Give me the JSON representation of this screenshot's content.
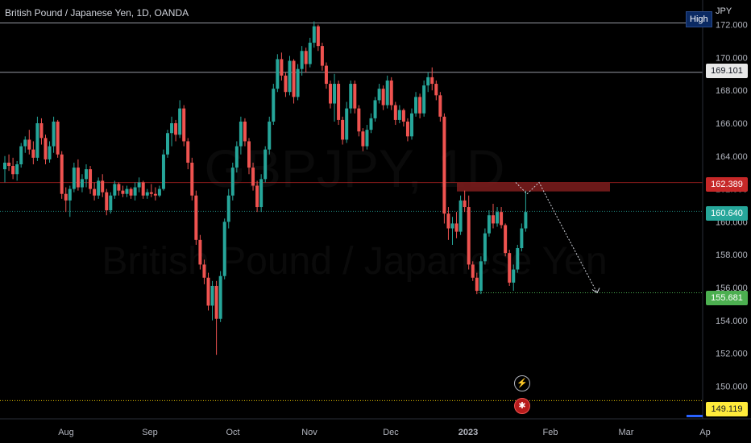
{
  "header": {
    "title": "British Pound / Japanese Yen, 1D, OANDA",
    "currency": "JPY",
    "high_label": "High"
  },
  "watermark": {
    "symbol": "GBPJPY, 1D",
    "name": "British Pound / Japanese Yen"
  },
  "price_tags": {
    "line_169": "169.101",
    "resistance": "162.389",
    "last": "160.640",
    "target": "155.681",
    "low": "149.119"
  },
  "icons": [
    "lightning-icon",
    "flag-uk-icon"
  ],
  "colors": {
    "up": "#26a69a",
    "down": "#ef5350",
    "zone": "#7f1d1d",
    "last_tag": "#26a69a",
    "target_tag": "#4caf50",
    "low_tag": "#ffeb3b",
    "resistance_tag": "#c62828"
  },
  "chart_data": {
    "type": "candlestick",
    "title": "British Pound / Japanese Yen, 1D, OANDA",
    "y_unit": "JPY",
    "ylim": [
      148.5,
      173.5
    ],
    "y_ticks": [
      "150.000",
      "152.000",
      "154.000",
      "156.000",
      "158.000",
      "160.000",
      "162.000",
      "164.000",
      "166.000",
      "168.000",
      "170.000",
      "172.000"
    ],
    "x_ticks": [
      "Aug",
      "Sep",
      "Oct",
      "Nov",
      "Dec",
      "2023",
      "Feb",
      "Mar",
      "Ap"
    ],
    "levels": {
      "high_line": 172.1,
      "line_169": 169.101,
      "resistance_zone": [
        161.85,
        162.389
      ],
      "last_price": 160.64,
      "target": 155.681,
      "low": 149.119
    },
    "projection": [
      162.4,
      161.7,
      162.4,
      160.6,
      155.681
    ],
    "candles": [
      [
        163.2,
        164.0,
        162.4,
        163.6
      ],
      [
        163.6,
        164.1,
        163.1,
        163.4
      ],
      [
        163.4,
        163.9,
        162.6,
        162.9
      ],
      [
        162.9,
        163.7,
        162.5,
        163.5
      ],
      [
        163.5,
        164.8,
        163.3,
        164.6
      ],
      [
        164.6,
        165.2,
        164.2,
        165.0
      ],
      [
        165.0,
        165.6,
        164.1,
        164.4
      ],
      [
        164.4,
        164.9,
        163.5,
        163.9
      ],
      [
        163.9,
        166.4,
        163.7,
        166.0
      ],
      [
        166.0,
        166.3,
        164.7,
        165.1
      ],
      [
        165.1,
        165.3,
        163.5,
        163.8
      ],
      [
        163.8,
        164.9,
        163.6,
        164.6
      ],
      [
        164.6,
        166.4,
        164.2,
        166.1
      ],
      [
        166.1,
        166.2,
        163.9,
        164.1
      ],
      [
        164.1,
        164.3,
        161.4,
        161.7
      ],
      [
        161.7,
        162.1,
        160.6,
        161.3
      ],
      [
        161.3,
        162.2,
        160.3,
        162.0
      ],
      [
        162.0,
        163.6,
        161.8,
        163.3
      ],
      [
        163.3,
        163.8,
        161.9,
        162.1
      ],
      [
        162.1,
        162.9,
        161.8,
        162.6
      ],
      [
        162.6,
        163.5,
        162.1,
        163.2
      ],
      [
        163.2,
        163.4,
        161.7,
        162.0
      ],
      [
        162.0,
        162.4,
        161.3,
        161.6
      ],
      [
        161.6,
        162.7,
        161.4,
        162.5
      ],
      [
        162.5,
        162.9,
        161.5,
        161.8
      ],
      [
        161.8,
        162.0,
        160.4,
        160.7
      ],
      [
        160.7,
        161.8,
        160.5,
        161.6
      ],
      [
        161.6,
        162.5,
        161.4,
        162.3
      ],
      [
        162.3,
        162.4,
        161.6,
        161.9
      ],
      [
        161.9,
        162.2,
        161.5,
        161.7
      ],
      [
        161.7,
        162.2,
        161.5,
        162.0
      ],
      [
        162.0,
        162.1,
        161.4,
        161.6
      ],
      [
        161.6,
        162.4,
        161.3,
        162.1
      ],
      [
        162.1,
        162.7,
        161.8,
        162.4
      ],
      [
        162.4,
        162.5,
        161.4,
        161.6
      ],
      [
        161.6,
        162.0,
        161.4,
        161.8
      ],
      [
        161.8,
        162.3,
        161.5,
        161.7
      ],
      [
        161.7,
        162.1,
        161.3,
        161.6
      ],
      [
        161.6,
        162.2,
        161.5,
        162.0
      ],
      [
        162.0,
        164.4,
        161.9,
        164.1
      ],
      [
        164.1,
        165.6,
        163.9,
        165.4
      ],
      [
        165.4,
        166.4,
        164.6,
        166.0
      ],
      [
        166.0,
        166.2,
        164.9,
        165.3
      ],
      [
        165.3,
        167.4,
        165.1,
        166.9
      ],
      [
        166.9,
        167.1,
        164.6,
        164.9
      ],
      [
        164.9,
        165.1,
        163.2,
        163.6
      ],
      [
        163.6,
        163.9,
        161.3,
        161.6
      ],
      [
        161.6,
        161.9,
        158.6,
        158.9
      ],
      [
        158.9,
        159.2,
        157.1,
        157.4
      ],
      [
        157.4,
        157.7,
        156.2,
        156.6
      ],
      [
        156.6,
        156.9,
        154.6,
        154.9
      ],
      [
        154.9,
        156.4,
        154.0,
        156.1
      ],
      [
        156.1,
        156.4,
        151.9,
        154.1
      ],
      [
        154.1,
        157.0,
        153.9,
        156.7
      ],
      [
        156.7,
        160.2,
        156.5,
        160.0
      ],
      [
        160.0,
        162.0,
        159.6,
        161.6
      ],
      [
        161.6,
        163.6,
        161.3,
        163.3
      ],
      [
        163.3,
        164.9,
        163.0,
        164.6
      ],
      [
        164.6,
        166.4,
        164.1,
        166.1
      ],
      [
        166.1,
        166.3,
        164.6,
        164.9
      ],
      [
        164.9,
        165.1,
        162.9,
        163.3
      ],
      [
        163.3,
        163.6,
        161.9,
        162.2
      ],
      [
        162.2,
        162.5,
        160.6,
        160.9
      ],
      [
        160.9,
        162.9,
        160.6,
        162.6
      ],
      [
        162.6,
        164.6,
        162.4,
        164.4
      ],
      [
        164.4,
        166.4,
        164.1,
        166.1
      ],
      [
        166.1,
        168.4,
        165.9,
        168.1
      ],
      [
        168.1,
        170.2,
        167.9,
        169.9
      ],
      [
        169.9,
        170.3,
        168.6,
        168.9
      ],
      [
        168.9,
        169.1,
        167.6,
        167.9
      ],
      [
        167.9,
        170.1,
        167.7,
        169.8
      ],
      [
        169.8,
        169.9,
        167.2,
        167.6
      ],
      [
        167.6,
        169.6,
        167.4,
        169.3
      ],
      [
        169.3,
        170.7,
        168.9,
        170.4
      ],
      [
        170.4,
        170.6,
        169.1,
        169.6
      ],
      [
        169.6,
        171.2,
        169.4,
        170.9
      ],
      [
        170.9,
        172.2,
        170.6,
        171.9
      ],
      [
        171.9,
        172.0,
        170.4,
        170.7
      ],
      [
        170.7,
        170.9,
        169.2,
        169.5
      ],
      [
        169.5,
        169.7,
        168.1,
        168.4
      ],
      [
        168.4,
        168.6,
        166.9,
        167.2
      ],
      [
        167.2,
        169.0,
        166.1,
        168.4
      ],
      [
        168.4,
        168.6,
        165.9,
        166.2
      ],
      [
        166.2,
        166.4,
        164.7,
        165.0
      ],
      [
        165.0,
        167.3,
        164.8,
        166.9
      ],
      [
        166.9,
        168.6,
        166.6,
        168.4
      ],
      [
        168.4,
        168.6,
        166.6,
        166.9
      ],
      [
        166.9,
        167.1,
        165.2,
        165.5
      ],
      [
        165.5,
        165.7,
        164.3,
        164.6
      ],
      [
        164.6,
        165.9,
        164.4,
        165.6
      ],
      [
        165.6,
        166.6,
        165.4,
        166.3
      ],
      [
        166.3,
        167.6,
        166.1,
        167.4
      ],
      [
        167.4,
        168.4,
        167.2,
        168.1
      ],
      [
        168.1,
        168.3,
        166.8,
        167.1
      ],
      [
        167.1,
        168.9,
        166.9,
        168.6
      ],
      [
        168.6,
        168.8,
        166.8,
        167.1
      ],
      [
        167.1,
        167.3,
        165.9,
        166.2
      ],
      [
        166.2,
        167.1,
        166.0,
        166.8
      ],
      [
        166.8,
        166.9,
        165.8,
        166.1
      ],
      [
        166.1,
        166.3,
        164.9,
        165.2
      ],
      [
        165.2,
        166.9,
        165.0,
        166.6
      ],
      [
        166.6,
        167.9,
        166.4,
        167.6
      ],
      [
        167.6,
        167.8,
        166.3,
        166.6
      ],
      [
        166.6,
        168.6,
        166.4,
        168.3
      ],
      [
        168.3,
        169.1,
        167.9,
        168.8
      ],
      [
        168.8,
        169.4,
        168.0,
        168.4
      ],
      [
        168.4,
        168.6,
        167.4,
        167.7
      ],
      [
        167.7,
        167.9,
        166.1,
        166.4
      ],
      [
        166.4,
        166.6,
        159.9,
        160.5
      ],
      [
        160.5,
        160.9,
        158.9,
        159.6
      ],
      [
        159.6,
        160.3,
        158.6,
        159.9
      ],
      [
        159.9,
        160.6,
        159.0,
        159.4
      ],
      [
        159.4,
        161.6,
        159.2,
        161.3
      ],
      [
        161.3,
        161.9,
        160.6,
        160.9
      ],
      [
        160.9,
        161.6,
        157.1,
        157.4
      ],
      [
        157.4,
        157.6,
        156.4,
        156.6
      ],
      [
        156.6,
        156.9,
        155.6,
        155.8
      ],
      [
        155.8,
        157.9,
        155.6,
        157.6
      ],
      [
        157.6,
        159.6,
        157.4,
        159.3
      ],
      [
        159.3,
        160.7,
        159.1,
        160.4
      ],
      [
        160.4,
        161.1,
        159.6,
        159.9
      ],
      [
        159.9,
        160.9,
        159.7,
        160.6
      ],
      [
        160.6,
        160.9,
        159.6,
        159.8
      ],
      [
        159.8,
        159.9,
        157.9,
        158.1
      ],
      [
        158.1,
        158.3,
        156.1,
        156.3
      ],
      [
        156.3,
        157.4,
        155.8,
        157.1
      ],
      [
        157.1,
        158.6,
        156.9,
        158.4
      ],
      [
        158.4,
        159.9,
        158.2,
        159.6
      ],
      [
        159.6,
        161.9,
        159.4,
        160.6
      ]
    ]
  }
}
